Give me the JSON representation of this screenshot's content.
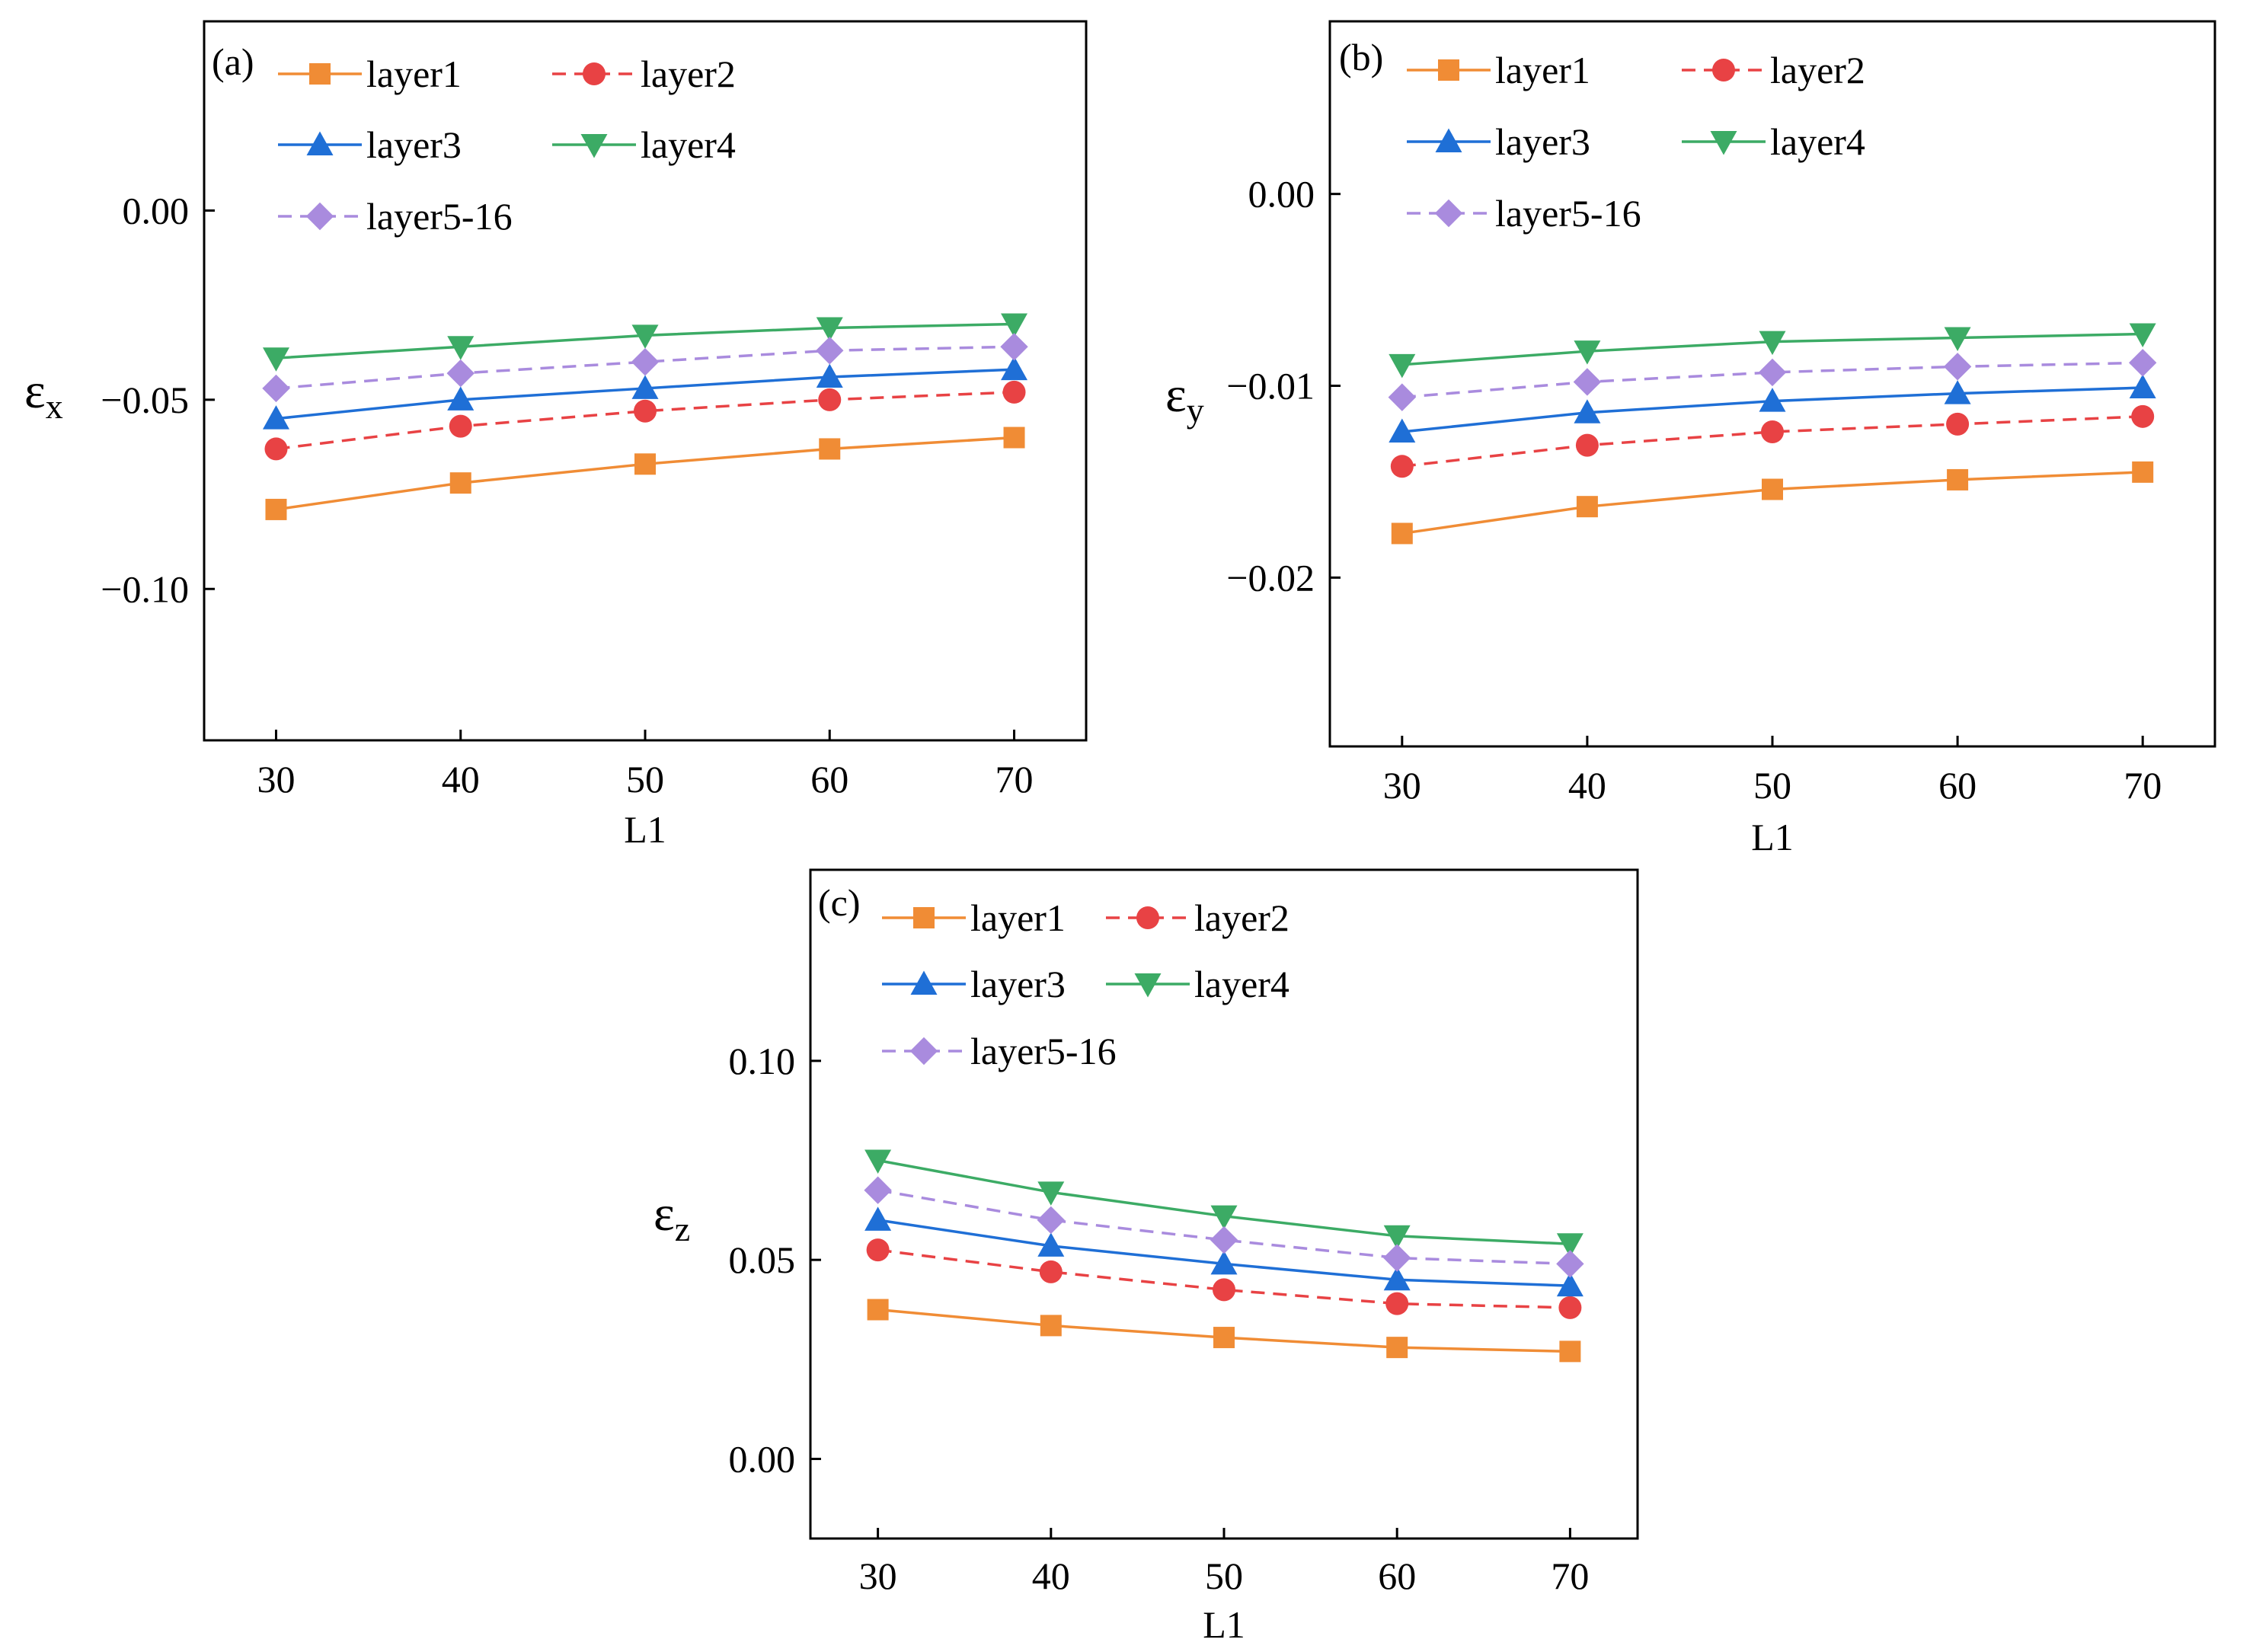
{
  "figure": {
    "series_names": [
      "layer1",
      "layer2",
      "layer3",
      "layer4",
      "layer5-16"
    ],
    "series_colors": [
      "#F08C35",
      "#E84244",
      "#1F6FD6",
      "#3CAB65",
      "#A98BDE"
    ],
    "series_markers": [
      "square",
      "circle",
      "triangle-up",
      "triangle-down",
      "diamond"
    ],
    "series_dashed": [
      false,
      true,
      false,
      false,
      true
    ]
  },
  "chart_data": [
    {
      "id": "a",
      "type": "line",
      "panel_label": "(a)",
      "title": "",
      "xlabel": "L1",
      "ylabel_main": "ε",
      "ylabel_sub": "x",
      "x": [
        30,
        40,
        50,
        60,
        70
      ],
      "x_tick_labels": [
        "30",
        "40",
        "50",
        "60",
        "70"
      ],
      "xlim": [
        26.1,
        73.9
      ],
      "ylim": [
        -0.14,
        0.05
      ],
      "y_ticks": [
        0.0,
        -0.05,
        -0.1
      ],
      "y_tick_labels": [
        "0.00",
        "−0.05",
        "−0.10"
      ],
      "grid": false,
      "legend_position": "top-left",
      "series": [
        {
          "name": "layer1",
          "values": [
            -0.079,
            -0.072,
            -0.067,
            -0.063,
            -0.06
          ]
        },
        {
          "name": "layer2",
          "values": [
            -0.063,
            -0.057,
            -0.053,
            -0.05,
            -0.048
          ]
        },
        {
          "name": "layer3",
          "values": [
            -0.055,
            -0.05,
            -0.047,
            -0.044,
            -0.042
          ]
        },
        {
          "name": "layer4",
          "values": [
            -0.039,
            -0.036,
            -0.033,
            -0.031,
            -0.03
          ]
        },
        {
          "name": "layer5-16",
          "values": [
            -0.047,
            -0.043,
            -0.04,
            -0.037,
            -0.036
          ]
        }
      ]
    },
    {
      "id": "b",
      "type": "line",
      "panel_label": "(b)",
      "title": "",
      "xlabel": "L1",
      "ylabel_main": "ε",
      "ylabel_sub": "y",
      "x": [
        30,
        40,
        50,
        60,
        70
      ],
      "x_tick_labels": [
        "30",
        "40",
        "50",
        "60",
        "70"
      ],
      "xlim": [
        26.1,
        73.9
      ],
      "ylim": [
        -0.0288,
        0.009
      ],
      "y_ticks": [
        0.0,
        -0.01,
        -0.02
      ],
      "y_tick_labels": [
        "0.00",
        "−0.01",
        "−0.02"
      ],
      "grid": false,
      "legend_position": "top-left",
      "series": [
        {
          "name": "layer1",
          "values": [
            -0.0177,
            -0.0163,
            -0.0154,
            -0.0149,
            -0.0145
          ]
        },
        {
          "name": "layer2",
          "values": [
            -0.0142,
            -0.0131,
            -0.0124,
            -0.012,
            -0.0116
          ]
        },
        {
          "name": "layer3",
          "values": [
            -0.0124,
            -0.0114,
            -0.0108,
            -0.0104,
            -0.0101
          ]
        },
        {
          "name": "layer4",
          "values": [
            -0.0089,
            -0.0082,
            -0.0077,
            -0.0075,
            -0.0073
          ]
        },
        {
          "name": "layer5-16",
          "values": [
            -0.0106,
            -0.0098,
            -0.0093,
            -0.009,
            -0.0088
          ]
        }
      ]
    },
    {
      "id": "c",
      "type": "line",
      "panel_label": "(c)",
      "title": "",
      "xlabel": "L1",
      "ylabel_main": "ε",
      "ylabel_sub": "z",
      "x": [
        30,
        40,
        50,
        60,
        70
      ],
      "x_tick_labels": [
        "30",
        "40",
        "50",
        "60",
        "70"
      ],
      "xlim": [
        26.1,
        73.9
      ],
      "ylim": [
        -0.02,
        0.148
      ],
      "y_ticks": [
        0.0,
        0.05,
        0.1
      ],
      "y_tick_labels": [
        "0.00",
        "0.05",
        "0.10"
      ],
      "grid": false,
      "legend_position": "top-left",
      "series": [
        {
          "name": "layer1",
          "values": [
            0.0375,
            0.0335,
            0.0305,
            0.028,
            0.027
          ]
        },
        {
          "name": "layer2",
          "values": [
            0.0525,
            0.047,
            0.0425,
            0.039,
            0.038
          ]
        },
        {
          "name": "layer3",
          "values": [
            0.06,
            0.0535,
            0.049,
            0.045,
            0.0435
          ]
        },
        {
          "name": "layer4",
          "values": [
            0.075,
            0.067,
            0.061,
            0.056,
            0.054
          ]
        },
        {
          "name": "layer5-16",
          "values": [
            0.0675,
            0.06,
            0.055,
            0.0505,
            0.049
          ]
        }
      ]
    }
  ]
}
